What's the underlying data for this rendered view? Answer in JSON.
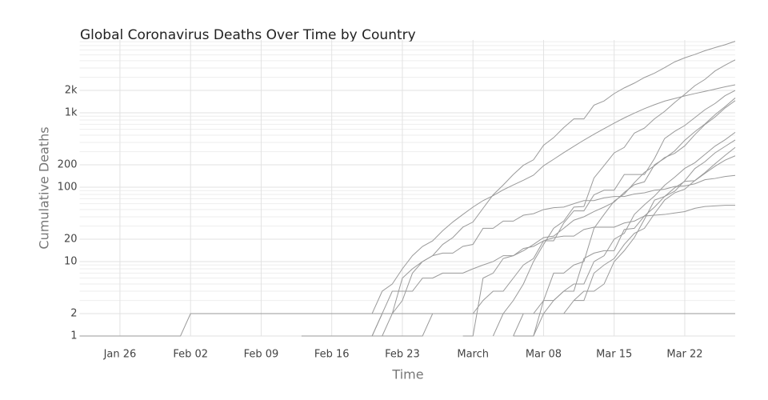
{
  "chart_data": {
    "type": "line",
    "title": "Global Coronavirus Deaths Over Time by Country",
    "x_label": "Time",
    "y_label": "Cumulative Deaths",
    "log_y": true,
    "grid": true,
    "minor_grid": true,
    "color": "#9a9a9a",
    "x": [
      "Jan 22",
      "Jan 23",
      "Jan 24",
      "Jan 25",
      "Jan 26",
      "Jan 27",
      "Jan 28",
      "Jan 29",
      "Jan 30",
      "Jan 31",
      "Feb 01",
      "Feb 02",
      "Feb 03",
      "Feb 04",
      "Feb 05",
      "Feb 06",
      "Feb 07",
      "Feb 08",
      "Feb 09",
      "Feb 10",
      "Feb 11",
      "Feb 12",
      "Feb 13",
      "Feb 14",
      "Feb 15",
      "Feb 16",
      "Feb 17",
      "Feb 18",
      "Feb 19",
      "Feb 20",
      "Feb 21",
      "Feb 22",
      "Feb 23",
      "Feb 24",
      "Feb 25",
      "Feb 26",
      "Feb 27",
      "Feb 28",
      "Feb 29",
      "Mar 01",
      "Mar 02",
      "Mar 03",
      "Mar 04",
      "Mar 05",
      "Mar 06",
      "Mar 07",
      "Mar 08",
      "Mar 09",
      "Mar 10",
      "Mar 11",
      "Mar 12",
      "Mar 13",
      "Mar 14",
      "Mar 15",
      "Mar 16",
      "Mar 17",
      "Mar 18",
      "Mar 19",
      "Mar 20",
      "Mar 21",
      "Mar 22",
      "Mar 23",
      "Mar 24",
      "Mar 25",
      "Mar 26",
      "Mar 27"
    ],
    "xticks": [
      "Jan 26",
      "Feb 02",
      "Feb 09",
      "Feb 16",
      "Feb 23",
      {
        "value": "Mar 01",
        "label": "March"
      },
      "Mar 08",
      "Mar 15",
      "Mar 22"
    ],
    "ylim": [
      1,
      9500
    ],
    "yticks": [
      1,
      2,
      10,
      20,
      100,
      200,
      {
        "value": 1000,
        "label": "1k"
      },
      {
        "value": 2000,
        "label": "2k"
      }
    ],
    "series": [
      {
        "values": [
          1,
          1,
          1,
          1,
          1,
          1,
          1,
          1,
          1,
          1,
          1,
          2,
          2,
          2,
          2,
          2,
          2,
          2,
          2,
          2,
          2,
          2,
          2,
          2,
          2,
          2,
          2,
          2,
          2,
          2,
          2,
          2,
          2,
          2,
          2,
          2,
          2,
          2,
          2,
          2,
          2,
          2,
          2,
          2,
          2,
          2,
          2,
          2,
          2,
          2,
          2,
          2,
          2,
          2,
          2,
          2,
          2,
          2,
          2,
          2,
          2,
          2,
          2,
          2,
          2,
          2
        ]
      },
      {
        "values": [
          null,
          null,
          null,
          null,
          null,
          null,
          null,
          null,
          null,
          null,
          null,
          null,
          null,
          null,
          null,
          null,
          null,
          null,
          null,
          null,
          null,
          null,
          null,
          null,
          null,
          null,
          null,
          null,
          null,
          null,
          1,
          2,
          3,
          7,
          10,
          12,
          17,
          21,
          29,
          34,
          52,
          79,
          107,
          148,
          197,
          233,
          366,
          463,
          631,
          827,
          827,
          1266,
          1441,
          1809,
          2158,
          2503,
          2978,
          3405,
          4032,
          4825,
          5476,
          6077,
          6820,
          7503,
          8215,
          9134
        ]
      },
      {
        "values": [
          null,
          null,
          null,
          null,
          null,
          null,
          null,
          null,
          null,
          null,
          null,
          null,
          null,
          null,
          null,
          null,
          null,
          null,
          null,
          null,
          null,
          null,
          null,
          null,
          null,
          null,
          null,
          null,
          2,
          2,
          4,
          5,
          8,
          12,
          16,
          19,
          26,
          34,
          43,
          54,
          66,
          77,
          92,
          107,
          124,
          145,
          194,
          237,
          291,
          354,
          429,
          514,
          611,
          724,
          853,
          988,
          1135,
          1284,
          1433,
          1556,
          1685,
          1812,
          1934,
          2077,
          2234,
          2378
        ]
      },
      {
        "values": [
          null,
          null,
          null,
          null,
          null,
          null,
          null,
          null,
          null,
          null,
          null,
          null,
          null,
          null,
          null,
          null,
          null,
          null,
          null,
          null,
          null,
          null,
          null,
          null,
          null,
          null,
          null,
          null,
          null,
          null,
          null,
          null,
          null,
          null,
          null,
          null,
          null,
          null,
          null,
          null,
          null,
          1,
          2,
          3,
          5,
          10,
          17,
          28,
          35,
          54,
          55,
          133,
          195,
          289,
          342,
          533,
          623,
          830,
          1043,
          1375,
          1772,
          2311,
          2808,
          3647,
          4365,
          5138
        ]
      },
      {
        "values": [
          null,
          null,
          null,
          null,
          null,
          null,
          null,
          null,
          null,
          null,
          null,
          null,
          null,
          null,
          null,
          null,
          null,
          null,
          null,
          null,
          null,
          null,
          null,
          null,
          1,
          1,
          1,
          1,
          1,
          1,
          1,
          1,
          1,
          1,
          1,
          2,
          2,
          2,
          2,
          2,
          3,
          4,
          4,
          6,
          9,
          11,
          19,
          19,
          33,
          48,
          48,
          79,
          91,
          91,
          148,
          148,
          148,
          243,
          450,
          562,
          674,
          860,
          1100,
          1331,
          1696,
          1995
        ]
      },
      {
        "values": [
          null,
          null,
          null,
          null,
          null,
          null,
          null,
          null,
          null,
          null,
          null,
          null,
          null,
          null,
          null,
          null,
          null,
          null,
          null,
          null,
          null,
          null,
          null,
          null,
          null,
          null,
          null,
          null,
          null,
          null,
          null,
          null,
          null,
          null,
          null,
          null,
          null,
          null,
          1,
          1,
          6,
          7,
          11,
          12,
          14,
          17,
          21,
          22,
          28,
          36,
          40,
          47,
          54,
          63,
          85,
          108,
          118,
          200,
          244,
          307,
          427,
          557,
          706,
          942,
          1209,
          1581
        ]
      },
      {
        "values": [
          null,
          null,
          null,
          null,
          null,
          null,
          null,
          null,
          null,
          null,
          null,
          null,
          null,
          null,
          null,
          null,
          null,
          null,
          null,
          null,
          null,
          null,
          null,
          null,
          null,
          null,
          null,
          null,
          null,
          null,
          null,
          null,
          null,
          null,
          null,
          null,
          null,
          null,
          null,
          null,
          null,
          null,
          null,
          1,
          2,
          2,
          3,
          7,
          7,
          9,
          10,
          28,
          43,
          65,
          81,
          115,
          158,
          194,
          250,
          285,
          359,
          508,
          694,
          877,
          1161,
          1455
        ]
      },
      {
        "values": [
          null,
          null,
          null,
          null,
          null,
          null,
          null,
          null,
          null,
          null,
          null,
          null,
          null,
          null,
          null,
          null,
          null,
          null,
          null,
          null,
          null,
          null,
          null,
          null,
          null,
          null,
          null,
          null,
          null,
          1,
          2,
          2,
          6,
          8,
          10,
          12,
          13,
          13,
          16,
          17,
          28,
          28,
          35,
          35,
          42,
          44,
          50,
          53,
          54,
          60,
          66,
          66,
          72,
          75,
          75,
          81,
          84,
          91,
          94,
          102,
          104,
          111,
          126,
          131,
          139,
          144
        ]
      },
      {
        "values": [
          null,
          null,
          null,
          null,
          null,
          null,
          null,
          null,
          null,
          null,
          null,
          null,
          null,
          null,
          null,
          null,
          null,
          null,
          null,
          null,
          null,
          null,
          1,
          1,
          1,
          1,
          1,
          1,
          1,
          1,
          2,
          4,
          4,
          4,
          6,
          6,
          7,
          7,
          7,
          8,
          9,
          10,
          12,
          12,
          15,
          16,
          19,
          21,
          22,
          22,
          27,
          29,
          29,
          29,
          33,
          35,
          41,
          42,
          43,
          45,
          47,
          52,
          55,
          56,
          57,
          57
        ]
      },
      {
        "values": [
          null,
          null,
          null,
          null,
          null,
          null,
          null,
          null,
          null,
          null,
          null,
          null,
          null,
          null,
          null,
          null,
          null,
          null,
          null,
          null,
          null,
          null,
          null,
          null,
          null,
          null,
          null,
          null,
          null,
          null,
          null,
          null,
          null,
          null,
          null,
          null,
          null,
          null,
          null,
          null,
          null,
          null,
          null,
          null,
          null,
          null,
          null,
          2,
          2,
          3,
          3,
          7,
          9,
          11,
          17,
          24,
          28,
          44,
          67,
          84,
          94,
          123,
          157,
          206,
          267,
          342
        ]
      },
      {
        "values": [
          null,
          null,
          null,
          null,
          null,
          null,
          null,
          null,
          null,
          null,
          null,
          null,
          null,
          null,
          null,
          null,
          null,
          null,
          null,
          null,
          null,
          null,
          null,
          null,
          null,
          null,
          null,
          null,
          null,
          null,
          null,
          null,
          null,
          null,
          null,
          null,
          null,
          null,
          null,
          null,
          null,
          null,
          null,
          null,
          1,
          1,
          3,
          3,
          4,
          5,
          5,
          10,
          12,
          20,
          24,
          43,
          58,
          76,
          106,
          136,
          179,
          213,
          276,
          356,
          434,
          546
        ]
      },
      {
        "values": [
          null,
          null,
          null,
          null,
          null,
          null,
          null,
          null,
          null,
          null,
          null,
          null,
          null,
          null,
          null,
          null,
          null,
          null,
          null,
          null,
          null,
          null,
          null,
          null,
          null,
          null,
          null,
          null,
          null,
          null,
          null,
          null,
          null,
          null,
          null,
          null,
          null,
          null,
          null,
          null,
          null,
          null,
          null,
          1,
          1,
          1,
          2,
          3,
          4,
          4,
          11,
          13,
          14,
          14,
          27,
          28,
          41,
          54,
          75,
          98,
          120,
          122,
          153,
          191,
          231,
          264
        ]
      },
      {
        "values": [
          null,
          null,
          null,
          null,
          null,
          null,
          null,
          null,
          null,
          null,
          null,
          null,
          null,
          null,
          null,
          null,
          null,
          null,
          null,
          null,
          null,
          null,
          null,
          null,
          null,
          null,
          null,
          null,
          null,
          null,
          null,
          null,
          null,
          null,
          null,
          null,
          null,
          null,
          null,
          null,
          null,
          null,
          null,
          null,
          null,
          null,
          null,
          null,
          null,
          3,
          4,
          4,
          5,
          10,
          14,
          21,
          37,
          67,
          75,
          88,
          122,
          178,
          220,
          289,
          353,
          431
        ]
      }
    ]
  }
}
